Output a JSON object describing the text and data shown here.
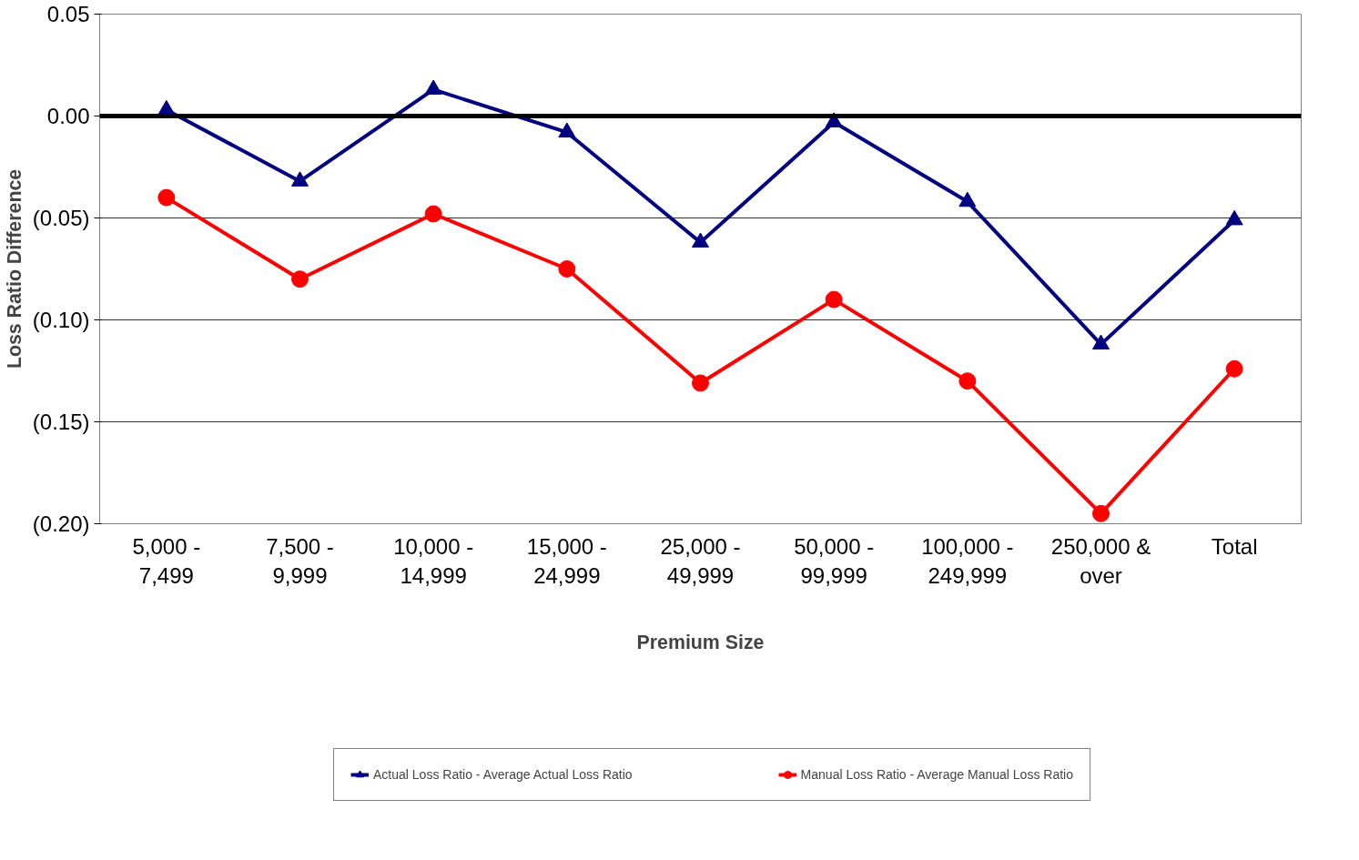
{
  "chart_data": {
    "type": "line",
    "xlabel": "Premium Size",
    "ylabel": "Loss Ratio Difference",
    "categories": [
      "5,000 - 7,499",
      "7,500 - 9,999",
      "10,000 - 14,999",
      "15,000 - 24,999",
      "25,000 - 49,999",
      "50,000 - 99,999",
      "100,000 - 249,999",
      "250,000 & over",
      "Total"
    ],
    "series": [
      {
        "name": "Actual Loss Ratio - Average Actual Loss Ratio",
        "color": "#000080",
        "marker": "triangle",
        "values": [
          0.003,
          -0.032,
          0.013,
          -0.008,
          -0.062,
          -0.003,
          -0.042,
          -0.112,
          -0.051
        ]
      },
      {
        "name": "Manual Loss Ratio - Average Manual Loss Ratio",
        "color": "#ff0000",
        "marker": "circle",
        "values": [
          -0.04,
          -0.08,
          -0.048,
          -0.075,
          -0.131,
          -0.09,
          -0.13,
          -0.195,
          -0.124
        ]
      }
    ],
    "ylim": [
      -0.2,
      0.05
    ],
    "yticks": [
      {
        "value": 0.05,
        "label": "0.05"
      },
      {
        "value": 0,
        "label": "0.00"
      },
      {
        "value": -0.05,
        "label": "(0.05)"
      },
      {
        "value": -0.1,
        "label": "(0.10)"
      },
      {
        "value": -0.15,
        "label": "(0.15)"
      },
      {
        "value": -0.2,
        "label": "(0.20)"
      }
    ],
    "ref_lines": [
      {
        "axis": "y",
        "value": 0,
        "color": "#000000"
      }
    ],
    "grid": "y",
    "legend": "bottom",
    "line_style": "solid"
  }
}
